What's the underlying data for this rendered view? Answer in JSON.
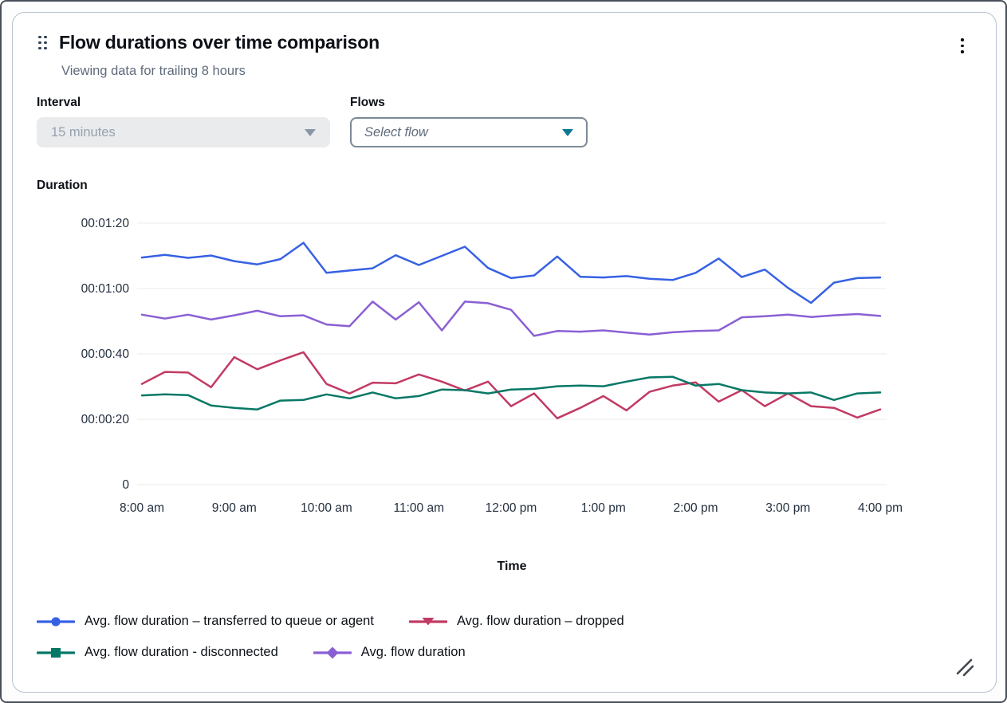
{
  "widget": {
    "title": "Flow durations over time comparison",
    "subtitle": "Viewing data for trailing 8 hours"
  },
  "controls": {
    "interval": {
      "label": "Interval",
      "value": "15 minutes",
      "state": "disabled"
    },
    "flows": {
      "label": "Flows",
      "placeholder": "Select flow"
    }
  },
  "icons": {
    "drag_handle": "six-dot-grid",
    "menu": "vertical-ellipsis",
    "dropdown_caret": "triangle-down",
    "resize": "double-diagonal-lines"
  },
  "colors": {
    "transferred": "#3661e3",
    "dropped": "#c23a63",
    "disconnected": "#077866",
    "avg": "#8a5fd4",
    "gridline": "#e9ebed",
    "tick_text": "#232f3e"
  },
  "chart_data": {
    "type": "line",
    "title": "Flow durations over time comparison",
    "ylabel": "Duration",
    "xlabel": "Time",
    "grid": "horizontal-only",
    "legend_position": "bottom",
    "ylim_seconds": [
      0,
      80
    ],
    "y_ticks": [
      {
        "label": "00:01:20",
        "seconds": 80
      },
      {
        "label": "00:01:00",
        "seconds": 60
      },
      {
        "label": "00:00:40",
        "seconds": 40
      },
      {
        "label": "00:00:20",
        "seconds": 20
      },
      {
        "label": "0",
        "seconds": 0
      }
    ],
    "x_labels": [
      "8:00 am",
      "9:00 am",
      "10:00 am",
      "11:00 am",
      "12:00 pm",
      "1:00 pm",
      "2:00 pm",
      "3:00 pm",
      "4:00 pm"
    ],
    "x_interval_minutes": 15,
    "series": [
      {
        "name": "Avg. flow duration – transferred to queue or agent",
        "color": "#3661e3",
        "marker": "circle",
        "values_seconds": [
          69.5,
          70.3,
          69.4,
          70.1,
          68.4,
          67.4,
          69.0,
          74.0,
          64.8,
          65.5,
          66.2,
          70.2,
          67.2,
          70.0,
          72.8,
          66.3,
          63.2,
          64.0,
          69.8,
          63.6,
          63.4,
          63.8,
          63.0,
          62.6,
          64.8,
          69.2,
          63.5,
          65.8,
          60.2,
          55.6,
          61.8,
          63.2,
          63.4
        ]
      },
      {
        "name": "Avg. flow duration – dropped",
        "color": "#c23a63",
        "marker": "triangle-down",
        "values_seconds": [
          30.8,
          34.5,
          34.3,
          29.8,
          39.0,
          35.3,
          38.0,
          40.5,
          30.8,
          27.9,
          31.2,
          31.0,
          33.7,
          31.5,
          28.8,
          31.5,
          24.0,
          27.9,
          20.3,
          23.5,
          27.1,
          22.7,
          28.4,
          30.3,
          31.3,
          25.4,
          28.9,
          24.0,
          27.9,
          24.0,
          23.5,
          20.5,
          23.0
        ]
      },
      {
        "name": "Avg. flow duration - disconnected",
        "color": "#077866",
        "marker": "square",
        "values_seconds": [
          27.3,
          27.6,
          27.4,
          24.2,
          23.5,
          23.0,
          25.7,
          25.9,
          27.6,
          26.4,
          28.2,
          26.4,
          27.1,
          29.1,
          28.9,
          27.9,
          29.1,
          29.3,
          30.1,
          30.3,
          30.1,
          31.5,
          32.8,
          33.0,
          30.3,
          30.8,
          28.9,
          28.2,
          27.9,
          28.2,
          25.9,
          27.9,
          28.2
        ]
      },
      {
        "name": "Avg. flow duration",
        "color": "#8a5fd4",
        "marker": "diamond",
        "values_seconds": [
          52.0,
          50.8,
          52.0,
          50.5,
          51.8,
          53.2,
          51.5,
          51.8,
          49.0,
          48.5,
          56.0,
          50.5,
          55.8,
          47.2,
          56.0,
          55.5,
          53.5,
          45.5,
          47.0,
          46.8,
          47.2,
          46.5,
          45.9,
          46.6,
          47.0,
          47.2,
          51.2,
          51.5,
          52.0,
          51.3,
          51.8,
          52.2,
          51.6
        ]
      }
    ]
  }
}
